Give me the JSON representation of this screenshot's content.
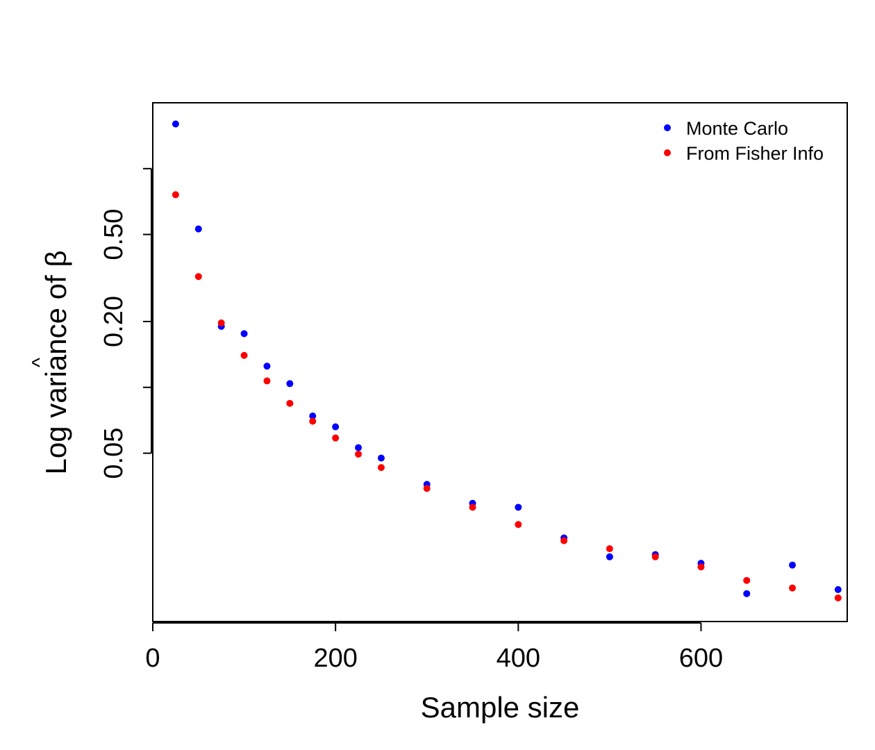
{
  "chart_data": {
    "type": "scatter",
    "title": "",
    "xlabel": "Sample size",
    "ylabel_prefix": "Log variance of ",
    "ylabel_symbol": "β",
    "ylabel_hat": "^",
    "y_scale": "log",
    "xlim": [
      0,
      760
    ],
    "ylim": [
      0.0085,
      2.0
    ],
    "x_ticks": [
      0,
      200,
      400,
      600
    ],
    "x_tick_labels": [
      "0",
      "200",
      "400",
      "600"
    ],
    "y_ticks": [
      0.05,
      0.1,
      0.2,
      0.5,
      1.0
    ],
    "y_tick_labels": [
      "0.05",
      "",
      "0.20",
      "0.50",
      ""
    ],
    "grid": false,
    "legend_position": "top-right",
    "series": [
      {
        "name": "Monte Carlo",
        "color": "#0000ff",
        "x": [
          25,
          50,
          75,
          100,
          125,
          150,
          175,
          200,
          225,
          250,
          300,
          350,
          400,
          450,
          500,
          550,
          600,
          650,
          700,
          750
        ],
        "y": [
          1.6,
          0.53,
          0.19,
          0.176,
          0.125,
          0.104,
          0.074,
          0.066,
          0.053,
          0.0475,
          0.036,
          0.0295,
          0.0283,
          0.0205,
          0.0168,
          0.0172,
          0.0157,
          0.0114,
          0.0154,
          0.0119
        ]
      },
      {
        "name": "From Fisher Info",
        "color": "#ff0000",
        "x": [
          25,
          50,
          75,
          100,
          125,
          150,
          175,
          200,
          225,
          250,
          300,
          350,
          400,
          450,
          500,
          550,
          600,
          650,
          700,
          750
        ],
        "y": [
          0.76,
          0.321,
          0.197,
          0.14,
          0.107,
          0.0845,
          0.07,
          0.0587,
          0.0495,
          0.043,
          0.0345,
          0.0283,
          0.0236,
          0.0199,
          0.0183,
          0.0168,
          0.0151,
          0.0131,
          0.0121,
          0.0109
        ]
      }
    ]
  }
}
